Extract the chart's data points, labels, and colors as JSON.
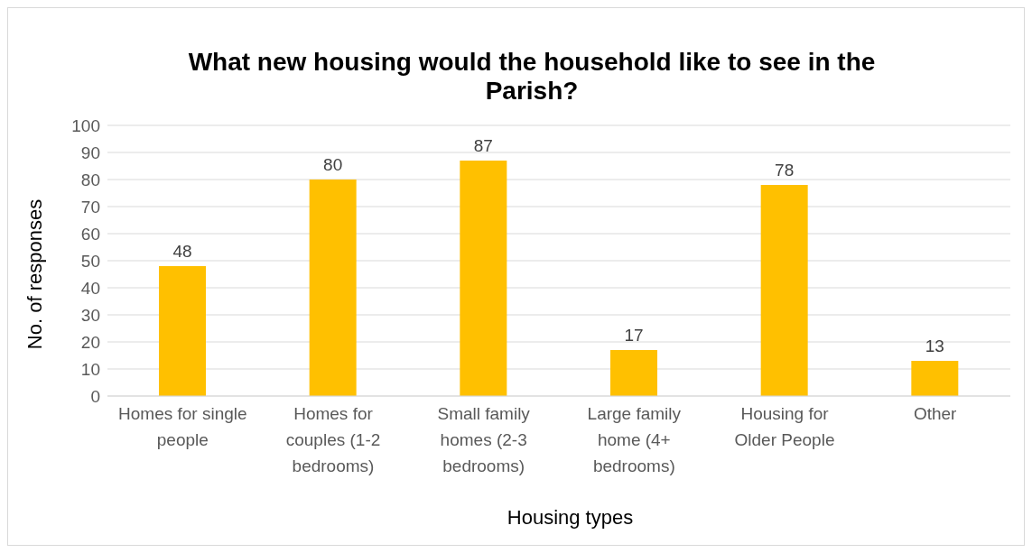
{
  "chart_data": {
    "type": "bar",
    "title": "What new housing would the household like to see in the Parish?",
    "xlabel": "Housing types",
    "ylabel": "No. of responses",
    "categories": [
      "Homes for single people",
      "Homes for couples (1-2 bedrooms)",
      "Small family homes (2-3 bedrooms)",
      "Large family home (4+ bedrooms)",
      "Housing for Older People",
      "Other"
    ],
    "values": [
      48,
      80,
      87,
      17,
      78,
      13
    ],
    "color": "#ffc000",
    "ylim": [
      0,
      100
    ],
    "yticks": [
      0,
      10,
      20,
      30,
      40,
      50,
      60,
      70,
      80,
      90,
      100
    ],
    "grid": "y",
    "data_labels": true
  }
}
